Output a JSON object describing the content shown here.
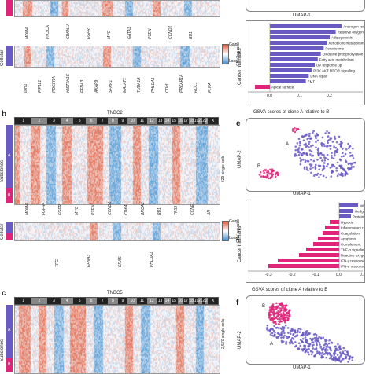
{
  "panel_a": {
    "top_genes": [
      "MDM4",
      "PIK3CA",
      "CDKN1A",
      "EGFR",
      "MYC",
      "GATA3",
      "PTEN",
      "CCND1",
      "RB1"
    ],
    "bottom_genes": [
      "IDH1",
      "FIP1L1",
      "PDGFRA",
      "HIST1H1C",
      "EFNA3",
      "AKAP9",
      "SFRP1",
      "MALAT1",
      "TUBA1A",
      "PHLDA1",
      "CDH1",
      "PRKAR1A",
      "RCC1",
      "FLNA"
    ],
    "cellular_label": "Cellular",
    "gain_label": "Gain",
    "loss_label": "Loss",
    "cnv_label": "CNV log ratio"
  },
  "panel_d": {
    "umap_label": "UMAP-1",
    "hallmarks_label": "Cancer hallmarks",
    "pathways": [
      "Androgen response",
      "Reactive oxygen species",
      "Adipogenesis",
      "Xenobiotic metabolism",
      "Peroxisome",
      "Oxidative phosphorylation",
      "Fatty acid metabolism",
      "UV response up",
      "PI3K AKT MTOR signaling",
      "DNA repair",
      "EMT",
      "Apical surface"
    ],
    "xaxis_label": "GSVA scores of clone A relative to B",
    "ticks": [
      "-0.1",
      "0.0",
      "0.1",
      "0.2"
    ]
  },
  "panel_b": {
    "letter": "b",
    "title": "TNBC2",
    "chromosomes": [
      "1",
      "2",
      "3",
      "4",
      "5",
      "6",
      "7",
      "8",
      "9",
      "10",
      "11",
      "12",
      "13",
      "14",
      "15",
      "16",
      "17",
      "18",
      "19",
      "20",
      "21",
      "22",
      "X"
    ],
    "single_cells": "629 single cells",
    "subclones": "Subclones",
    "clone_a": "A",
    "clone_b": "B",
    "top_genes": [
      "MDM4",
      "FGFR4",
      "EGFR",
      "MYC",
      "PTEN",
      "CCND1",
      "CDK4",
      "BRCA2",
      "RB1",
      "TP53",
      "CCNE1",
      "AR"
    ],
    "bottom_genes": [
      "TFG",
      "EFNA3",
      "KRAS",
      "PHLDA1"
    ],
    "cellular_label": "Cellular",
    "gain_label": "Gain",
    "loss_label": "Loss",
    "cnv_label": "CNV log ratio"
  },
  "panel_e": {
    "letter": "e",
    "umap2": "UMAP-2",
    "umap1": "UMAP-1",
    "label_a": "A",
    "label_b": "B",
    "hallmarks_label": "Cancer hallmarks",
    "pathways": [
      "WNT CTNNB1 pathway",
      "Hedgehog signaling",
      "Protein secretion",
      "Hypoxia",
      "Inflammatory response",
      "Coagulation",
      "Apoptosis",
      "Complement",
      "TNF-α signaling via NF-κB",
      "Reactive oxygen pathway",
      "IFN-γ response",
      "IFN-α response"
    ],
    "xaxis_label": "GSVA scores of clone A relative to B",
    "ticks": [
      "-0.3",
      "-0.2",
      "-0.1",
      "0.0",
      "0.1"
    ]
  },
  "panel_c": {
    "letter": "c",
    "title": "TNBC5",
    "chromosomes": [
      "1",
      "2",
      "3",
      "4",
      "5",
      "6",
      "7",
      "8",
      "9",
      "10",
      "11",
      "12",
      "13",
      "14",
      "15",
      "16",
      "17",
      "18",
      "19",
      "20",
      "21",
      "22",
      "X"
    ],
    "single_cells": "2,570 single cells",
    "subclones": "Subclones",
    "clone_a": "A",
    "clone_b": "B"
  },
  "panel_f": {
    "letter": "f",
    "umap2": "UMAP-2",
    "umap1": "UMAP-1",
    "label_a": "A",
    "label_b": "B"
  },
  "colors": {
    "clone_a": "#6a5bc4",
    "clone_b": "#e0247a",
    "gain": "#e05a3a",
    "loss": "#3f8fd0"
  }
}
